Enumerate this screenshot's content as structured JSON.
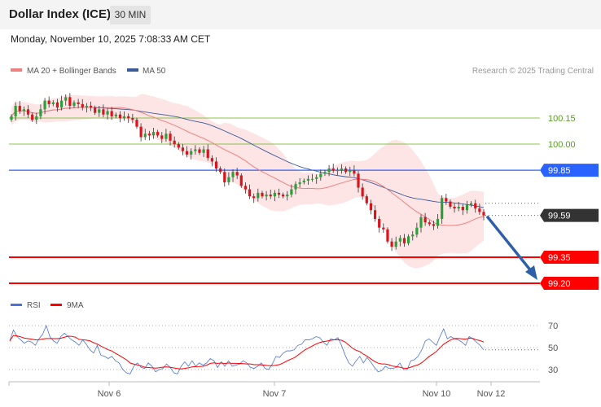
{
  "header": {
    "title": "Dollar Index (ICE)",
    "timeframe": "30 MIN",
    "datetime": "Monday, November 10, 2025 7:08:33 AM CET"
  },
  "legend": {
    "items": [
      {
        "label": "MA 20 + Bollinger Bands",
        "color": "#f08080"
      },
      {
        "label": "MA 50",
        "color": "#3a5a9a"
      }
    ],
    "credit": "Research © 2025 Trading Central"
  },
  "chart_data": {
    "type": "candlestick",
    "x_labels": [
      "Nov 6",
      "Nov 7",
      "Nov 10",
      "Nov 12"
    ],
    "levels": [
      {
        "value": 100.15,
        "label": "100.15",
        "kind": "line",
        "color": "#8bc34a"
      },
      {
        "value": 100.0,
        "label": "100.00",
        "kind": "line",
        "color": "#8bc34a"
      },
      {
        "value": 99.85,
        "label": "99.85",
        "kind": "tag",
        "color": "#2962ff"
      },
      {
        "value": 99.59,
        "label": "99.59",
        "kind": "tag",
        "color": "#333333"
      },
      {
        "value": 99.35,
        "label": "99.35",
        "kind": "tag",
        "color": "#ff0000"
      },
      {
        "value": 99.2,
        "label": "99.20",
        "kind": "tag",
        "color": "#ff0000"
      }
    ],
    "price_range": [
      99.2,
      100.2
    ],
    "forecast_arrow": {
      "from": 99.59,
      "to": 99.2
    },
    "candles_close": [
      100.16,
      100.22,
      100.19,
      100.2,
      100.17,
      100.14,
      100.16,
      100.2,
      100.25,
      100.23,
      100.24,
      100.21,
      100.25,
      100.27,
      100.22,
      100.24,
      100.23,
      100.21,
      100.22,
      100.21,
      100.18,
      100.2,
      100.17,
      100.19,
      100.16,
      100.17,
      100.15,
      100.16,
      100.15,
      100.14,
      100.1,
      100.04,
      100.06,
      100.05,
      100.07,
      100.05,
      100.03,
      100.06,
      100.02,
      100.0,
      99.98,
      99.96,
      99.94,
      99.96,
      99.97,
      99.95,
      99.97,
      99.92,
      99.9,
      99.86,
      99.84,
      99.78,
      99.81,
      99.84,
      99.82,
      99.76,
      99.74,
      99.7,
      99.69,
      99.72,
      99.7,
      99.71,
      99.7,
      99.72,
      99.71,
      99.7,
      99.71,
      99.74,
      99.77,
      99.78,
      99.79,
      99.8,
      99.8,
      99.81,
      99.83,
      99.84,
      99.86,
      99.85,
      99.85,
      99.86,
      99.84,
      99.85,
      99.83,
      99.75,
      99.7,
      99.66,
      99.62,
      99.57,
      99.52,
      99.51,
      99.44,
      99.41,
      99.44,
      99.46,
      99.43,
      99.47,
      99.48,
      99.52,
      99.58,
      99.55,
      99.54,
      99.53,
      99.57,
      99.69,
      99.67,
      99.64,
      99.63,
      99.64,
      99.62,
      99.65,
      99.66,
      99.63,
      99.61,
      99.59
    ],
    "rsi": {
      "labels": [
        "RSI",
        "9MA"
      ],
      "colors": [
        "#4a72d8",
        "#ff0000"
      ],
      "levels": [
        70,
        50,
        30
      ],
      "rsi_values": [
        56,
        66,
        60,
        57,
        54,
        56,
        55,
        52,
        58,
        62,
        70,
        60,
        56,
        54,
        60,
        63,
        60,
        57,
        55,
        52,
        57,
        53,
        48,
        45,
        52,
        43,
        42,
        40,
        42,
        38,
        36,
        30,
        27,
        26,
        33,
        36,
        32,
        31,
        36,
        33,
        28,
        30,
        31,
        35,
        32,
        27,
        26,
        33,
        37,
        33,
        38,
        33,
        36,
        34,
        36,
        40,
        38,
        32,
        37,
        33,
        38,
        33,
        34,
        35,
        38,
        36,
        32,
        31,
        33,
        36,
        31,
        30,
        35,
        42,
        41,
        45,
        47,
        47,
        48,
        52,
        53,
        57,
        57,
        58,
        60,
        59,
        55,
        52,
        58,
        57,
        59,
        52,
        43,
        36,
        33,
        38,
        42,
        36,
        41,
        37,
        32,
        28,
        29,
        33,
        31,
        31,
        32,
        36,
        30,
        30,
        38,
        39,
        42,
        48,
        56,
        58,
        55,
        52,
        60,
        67,
        58,
        60,
        58,
        57,
        55,
        52,
        60,
        58,
        55,
        52,
        48
      ]
    }
  }
}
